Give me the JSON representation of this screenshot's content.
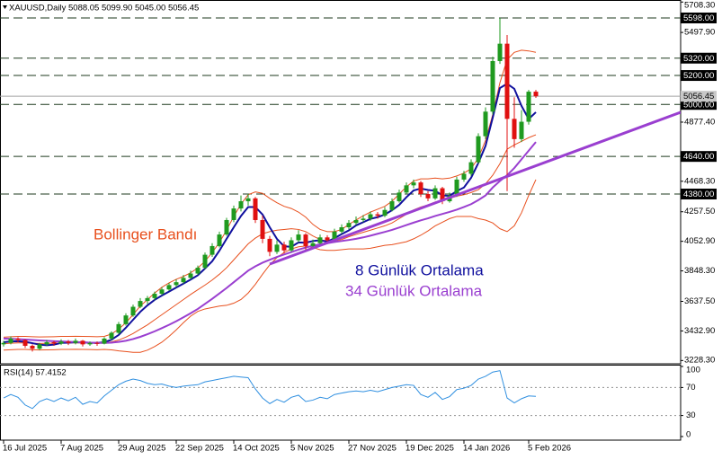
{
  "chart_data": [
    {
      "type": "candlestick",
      "title": "XAUUSD,Daily",
      "ohlc_label": "5088.05 5099.90 5045.00 5056.45",
      "categories": [
        "16 Jul 2025",
        null,
        null,
        null,
        null,
        null,
        null,
        null,
        "7 Aug 2025",
        null,
        null,
        null,
        null,
        null,
        null,
        null,
        "29 Aug 2025",
        null,
        null,
        null,
        null,
        null,
        null,
        null,
        "22 Sep 2025",
        null,
        null,
        null,
        null,
        null,
        null,
        null,
        "14 Oct 2025",
        null,
        null,
        null,
        null,
        null,
        null,
        null,
        "5 Nov 2025",
        null,
        null,
        null,
        null,
        null,
        null,
        null,
        "27 Nov 2025",
        null,
        null,
        null,
        null,
        null,
        null,
        null,
        "19 Dec 2025",
        null,
        null,
        null,
        null,
        null,
        null,
        null,
        "14 Jan 2026",
        null,
        null,
        null,
        null,
        null,
        null,
        null,
        null,
        "5 Feb 2026",
        null
      ],
      "candles": [
        [
          3340,
          3365,
          3325,
          3350
        ],
        [
          3350,
          3395,
          3340,
          3380
        ],
        [
          3380,
          3390,
          3355,
          3370
        ],
        [
          3370,
          3375,
          3315,
          3330
        ],
        [
          3330,
          3340,
          3290,
          3310
        ],
        [
          3310,
          3350,
          3300,
          3340
        ],
        [
          3340,
          3370,
          3330,
          3355
        ],
        [
          3355,
          3365,
          3330,
          3345
        ],
        [
          3345,
          3375,
          3335,
          3360
        ],
        [
          3360,
          3370,
          3335,
          3350
        ],
        [
          3350,
          3380,
          3340,
          3365
        ],
        [
          3365,
          3370,
          3325,
          3340
        ],
        [
          3340,
          3360,
          3330,
          3350
        ],
        [
          3350,
          3360,
          3330,
          3345
        ],
        [
          3345,
          3390,
          3340,
          3380
        ],
        [
          3380,
          3430,
          3370,
          3420
        ],
        [
          3420,
          3495,
          3410,
          3480
        ],
        [
          3480,
          3555,
          3470,
          3540
        ],
        [
          3540,
          3615,
          3530,
          3600
        ],
        [
          3600,
          3660,
          3590,
          3640
        ],
        [
          3640,
          3675,
          3620,
          3660
        ],
        [
          3660,
          3705,
          3645,
          3690
        ],
        [
          3690,
          3735,
          3680,
          3720
        ],
        [
          3720,
          3765,
          3710,
          3750
        ],
        [
          3750,
          3790,
          3735,
          3770
        ],
        [
          3770,
          3820,
          3760,
          3800
        ],
        [
          3800,
          3850,
          3790,
          3830
        ],
        [
          3830,
          3885,
          3820,
          3870
        ],
        [
          3870,
          3975,
          3860,
          3960
        ],
        [
          3960,
          4040,
          3945,
          4020
        ],
        [
          4020,
          4120,
          4010,
          4100
        ],
        [
          4100,
          4215,
          4090,
          4200
        ],
        [
          4200,
          4300,
          4185,
          4280
        ],
        [
          4280,
          4370,
          4260,
          4330
        ],
        [
          4330,
          4381,
          4300,
          4350
        ],
        [
          4350,
          4360,
          4180,
          4200
        ],
        [
          4200,
          4230,
          4040,
          4070
        ],
        [
          4070,
          4090,
          3950,
          3980
        ],
        [
          3980,
          4060,
          3965,
          4030
        ],
        [
          4030,
          4050,
          3970,
          3990
        ],
        [
          3990,
          4080,
          3980,
          4060
        ],
        [
          4060,
          4130,
          4045,
          4100
        ],
        [
          4100,
          4110,
          3990,
          4020
        ],
        [
          4020,
          4065,
          4000,
          4040
        ],
        [
          4040,
          4100,
          4025,
          4080
        ],
        [
          4080,
          4095,
          4035,
          4060
        ],
        [
          4060,
          4140,
          4050,
          4120
        ],
        [
          4120,
          4170,
          4105,
          4150
        ],
        [
          4150,
          4200,
          4135,
          4180
        ],
        [
          4180,
          4225,
          4165,
          4200
        ],
        [
          4200,
          4235,
          4185,
          4210
        ],
        [
          4210,
          4260,
          4195,
          4240
        ],
        [
          4240,
          4255,
          4210,
          4230
        ],
        [
          4230,
          4290,
          4220,
          4270
        ],
        [
          4270,
          4350,
          4260,
          4330
        ],
        [
          4330,
          4410,
          4320,
          4390
        ],
        [
          4390,
          4460,
          4380,
          4440
        ],
        [
          4440,
          4480,
          4420,
          4460
        ],
        [
          4460,
          4470,
          4360,
          4380
        ],
        [
          4380,
          4400,
          4330,
          4350
        ],
        [
          4350,
          4440,
          4340,
          4420
        ],
        [
          4420,
          4430,
          4310,
          4330
        ],
        [
          4330,
          4390,
          4320,
          4370
        ],
        [
          4370,
          4500,
          4360,
          4480
        ],
        [
          4480,
          4540,
          4465,
          4520
        ],
        [
          4520,
          4620,
          4505,
          4600
        ],
        [
          4600,
          4800,
          4590,
          4780
        ],
        [
          4780,
          4980,
          4760,
          4950
        ],
        [
          4950,
          5330,
          4930,
          5300
        ],
        [
          5300,
          5598,
          5280,
          5420
        ],
        [
          5420,
          5480,
          4400,
          4900
        ],
        [
          4900,
          5050,
          4700,
          4760
        ],
        [
          4760,
          4960,
          4740,
          4880
        ],
        [
          4880,
          5100,
          4860,
          5088
        ],
        [
          5088.05,
          5099.9,
          5045,
          5056.45
        ]
      ],
      "up_color": "#1f9a1f",
      "down_color": "#e01010",
      "bollinger": {
        "name": "Bollinger Bandı",
        "color": "#e8501e",
        "upper": [
          3390,
          3393,
          3395,
          3395,
          3393,
          3391,
          3392,
          3393,
          3395,
          3395,
          3396,
          3395,
          3394,
          3393,
          3395,
          3412,
          3445,
          3490,
          3545,
          3605,
          3650,
          3695,
          3735,
          3765,
          3790,
          3810,
          3835,
          3868,
          3915,
          3975,
          4045,
          4130,
          4225,
          4310,
          4375,
          4395,
          4385,
          4350,
          4320,
          4295,
          4280,
          4255,
          4220,
          4170,
          4135,
          4120,
          4120,
          4135,
          4170,
          4200,
          4230,
          4255,
          4275,
          4295,
          4330,
          4380,
          4430,
          4470,
          4485,
          4485,
          4490,
          4485,
          4490,
          4505,
          4525,
          4555,
          4630,
          4750,
          4930,
          5150,
          5310,
          5360,
          5375,
          5370,
          5360
        ],
        "middle": [
          3345,
          3348,
          3350,
          3350,
          3348,
          3346,
          3347,
          3348,
          3350,
          3350,
          3351,
          3350,
          3349,
          3348,
          3350,
          3357,
          3370,
          3390,
          3415,
          3445,
          3475,
          3510,
          3545,
          3580,
          3615,
          3650,
          3685,
          3718,
          3750,
          3785,
          3825,
          3870,
          3925,
          3980,
          4035,
          4075,
          4105,
          4120,
          4130,
          4135,
          4140,
          4135,
          4120,
          4090,
          4065,
          4055,
          4055,
          4065,
          4085,
          4100,
          4115,
          4130,
          4145,
          4160,
          4180,
          4210,
          4240,
          4270,
          4290,
          4305,
          4325,
          4335,
          4350,
          4365,
          4375,
          4390,
          4410,
          4450,
          4510,
          4590,
          4690,
          4720,
          4745,
          4770,
          4790
        ],
        "lower": [
          3300,
          3303,
          3305,
          3305,
          3303,
          3301,
          3302,
          3303,
          3305,
          3305,
          3306,
          3305,
          3304,
          3303,
          3305,
          3302,
          3295,
          3290,
          3285,
          3285,
          3300,
          3325,
          3355,
          3395,
          3440,
          3490,
          3535,
          3568,
          3585,
          3595,
          3605,
          3610,
          3625,
          3650,
          3695,
          3755,
          3825,
          3890,
          3940,
          3975,
          4000,
          4015,
          4020,
          4010,
          3995,
          3990,
          3990,
          3995,
          4000,
          4000,
          4000,
          4005,
          4015,
          4025,
          4030,
          4040,
          4050,
          4070,
          4095,
          4125,
          4160,
          4185,
          4210,
          4225,
          4225,
          4225,
          4210,
          4200,
          4180,
          4140,
          4120,
          4160,
          4250,
          4370,
          4480
        ]
      },
      "series": [
        {
          "name": "8 Günlük Ortalama",
          "color": "#10109e",
          "values": [
            3355,
            3360,
            3362,
            3358,
            3348,
            3338,
            3334,
            3338,
            3350,
            3352,
            3355,
            3354,
            3351,
            3350,
            3355,
            3372,
            3405,
            3455,
            3510,
            3565,
            3610,
            3648,
            3678,
            3705,
            3733,
            3760,
            3788,
            3818,
            3865,
            3915,
            3988,
            4070,
            4150,
            4228,
            4290,
            4290,
            4238,
            4150,
            4070,
            4018,
            4015,
            4045,
            4043,
            4055,
            4060,
            4050,
            4075,
            4103,
            4128,
            4163,
            4185,
            4208,
            4220,
            4238,
            4268,
            4305,
            4358,
            4405,
            4418,
            4408,
            4403,
            4370,
            4368,
            4400,
            4425,
            4493,
            4595,
            4713,
            4908,
            5113,
            5143,
            5108,
            4990,
            4899,
            4946
          ]
        },
        {
          "name": "34 Günlük Ortalama",
          "color": "#9a3fd0",
          "values": [
            3380,
            3378,
            3376,
            3373,
            3370,
            3367,
            3365,
            3362,
            3360,
            3358,
            3356,
            3354,
            3352,
            3350,
            3350,
            3352,
            3357,
            3365,
            3377,
            3392,
            3410,
            3430,
            3452,
            3475,
            3500,
            3527,
            3555,
            3585,
            3620,
            3655,
            3692,
            3730,
            3770,
            3810,
            3850,
            3880,
            3905,
            3925,
            3945,
            3962,
            3978,
            3995,
            4010,
            4022,
            4032,
            4040,
            4048,
            4055,
            4062,
            4070,
            4080,
            4092,
            4105,
            4118,
            4132,
            4148,
            4165,
            4182,
            4198,
            4212,
            4228,
            4242,
            4256,
            4272,
            4290,
            4310,
            4338,
            4370,
            4425,
            4470,
            4510,
            4560,
            4620,
            4680,
            4740
          ]
        }
      ],
      "levels": [
        {
          "value": 5598,
          "label": "5598.00"
        },
        {
          "value": 5320,
          "label": "5320.00"
        },
        {
          "value": 5200,
          "label": "5200.00"
        },
        {
          "value": 5000,
          "label": "5000.00"
        },
        {
          "value": 4640,
          "label": "4640.00"
        },
        {
          "value": 4380,
          "label": "4380.00"
        }
      ],
      "level_color": "#1e3a1e",
      "last_price": {
        "value": 5056.45,
        "label": "5056.45"
      },
      "ylim": [
        3205.6,
        5722.3
      ],
      "yticks": [
        {
          "value": 3228.3,
          "label": "3228.30"
        },
        {
          "value": 3432.9,
          "label": "3432.90"
        },
        {
          "value": 3637.5,
          "label": "3637.50"
        },
        {
          "value": 3848.3,
          "label": "3848.30"
        },
        {
          "value": 4052.9,
          "label": "4052.90"
        },
        {
          "value": 4257.5,
          "label": "4257.50"
        },
        {
          "value": 4468.3,
          "label": "4468.30"
        },
        {
          "value": 4877.4,
          "label": "4877.40"
        },
        {
          "value": 5497.9,
          "label": "5497.90"
        },
        {
          "value": 5708.3,
          "label": "5708.30"
        }
      ],
      "grid": false
    },
    {
      "type": "line",
      "title": "RSI(14) 57.4152",
      "color": "#2f8fe0",
      "values": [
        55,
        60,
        56,
        45,
        40,
        50,
        54,
        50,
        55,
        51,
        56,
        46,
        50,
        48,
        58,
        66,
        74,
        79,
        82,
        80,
        76,
        74,
        75,
        72,
        70,
        72,
        73,
        74,
        78,
        80,
        82,
        84,
        86,
        85,
        84,
        68,
        55,
        47,
        53,
        49,
        56,
        59,
        50,
        52,
        56,
        54,
        60,
        62,
        64,
        65,
        64,
        66,
        64,
        67,
        70,
        72,
        74,
        73,
        60,
        56,
        63,
        53,
        57,
        67,
        69,
        73,
        82,
        86,
        92,
        94,
        55,
        48,
        54,
        58,
        57.4152
      ],
      "ylim": [
        0,
        100
      ],
      "yticks": [
        0,
        30,
        70,
        100
      ],
      "level_lines": [
        30,
        70
      ]
    }
  ]
}
